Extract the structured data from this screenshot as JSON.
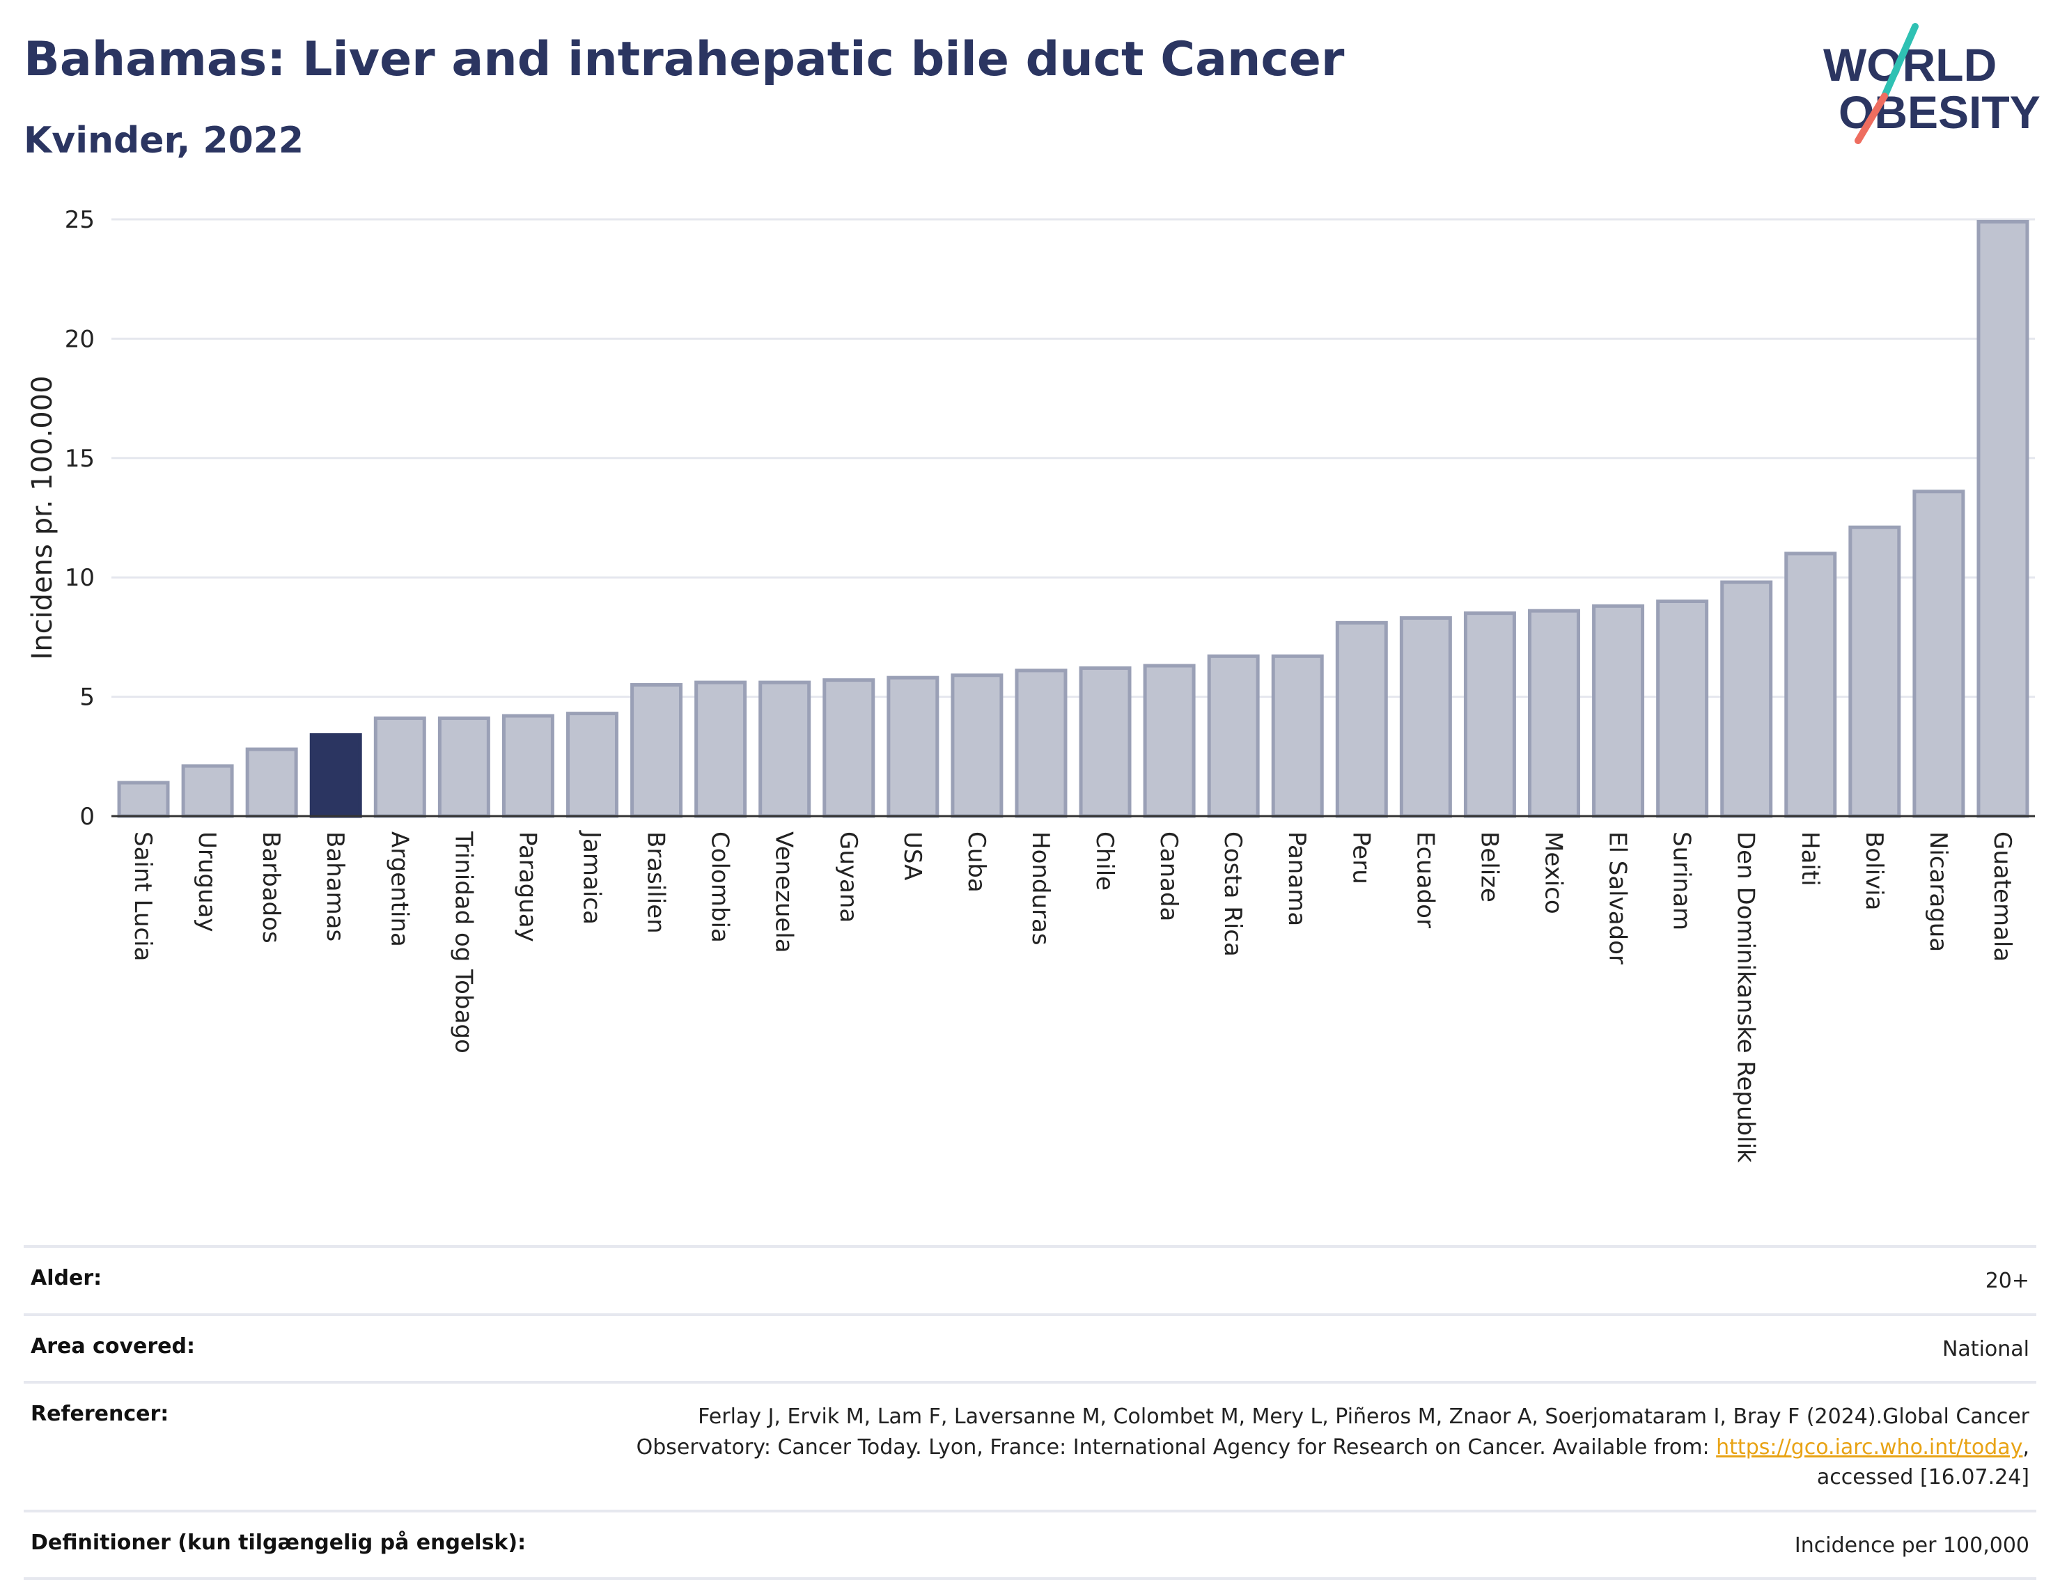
{
  "header": {
    "title": "Bahamas: Liver and intrahepatic bile duct Cancer",
    "subtitle": "Kvinder, 2022",
    "logo_line1": "WORLD",
    "logo_line2": "OBESITY"
  },
  "colors": {
    "bar": "#bfc3d0",
    "bar_border": "#9aa0b6",
    "highlight": "#2b3561",
    "title": "#2b3561",
    "logo_teal": "#2fc1b3",
    "logo_coral": "#ee6d5f",
    "link": "#e8a315"
  },
  "chart_data": {
    "type": "bar",
    "title": "Bahamas: Liver and intrahepatic bile duct Cancer",
    "subtitle": "Kvinder, 2022",
    "xlabel": "",
    "ylabel": "Incidens pr. 100.000",
    "ylim": [
      0,
      25
    ],
    "yticks": [
      0,
      5,
      10,
      15,
      20,
      25
    ],
    "grid": true,
    "highlight": "Bahamas",
    "categories": [
      "Saint Lucia",
      "Uruguay",
      "Barbados",
      "Bahamas",
      "Argentina",
      "Trinidad og Tobago",
      "Paraguay",
      "Jamaica",
      "Brasilien",
      "Colombia",
      "Venezuela",
      "Guyana",
      "USA",
      "Cuba",
      "Honduras",
      "Chile",
      "Canada",
      "Costa Rica",
      "Panama",
      "Peru",
      "Ecuador",
      "Belize",
      "Mexico",
      "El Salvador",
      "Surinam",
      "Den Dominikanske Republik",
      "Haiti",
      "Bolivia",
      "Nicaragua",
      "Guatemala"
    ],
    "values": [
      1.4,
      2.1,
      2.8,
      3.4,
      4.1,
      4.1,
      4.2,
      4.3,
      5.5,
      5.6,
      5.6,
      5.7,
      5.8,
      5.9,
      6.1,
      6.2,
      6.3,
      6.7,
      6.7,
      8.1,
      8.3,
      8.5,
      8.6,
      8.8,
      9.0,
      9.8,
      11.0,
      12.1,
      13.6,
      24.9
    ]
  },
  "info": {
    "rows": [
      {
        "key": "Alder:",
        "value": "20+"
      },
      {
        "key": "Area covered:",
        "value": "National"
      },
      {
        "key": "Referencer:",
        "value_before": "Ferlay J, Ervik M, Lam F, Laversanne M, Colombet M, Mery L, Piñeros M, Znaor A, Soerjomataram I, Bray F (2024).Global Cancer Observatory: Cancer Today. Lyon, France: International Agency for Research on Cancer. Available from: ",
        "link": "https://gco.iarc.who.int/today",
        "value_after": ", accessed [16.07.24]"
      },
      {
        "key": "Definitioner (kun tilgængelig på engelsk):",
        "value": "Incidence per 100,000"
      }
    ]
  }
}
